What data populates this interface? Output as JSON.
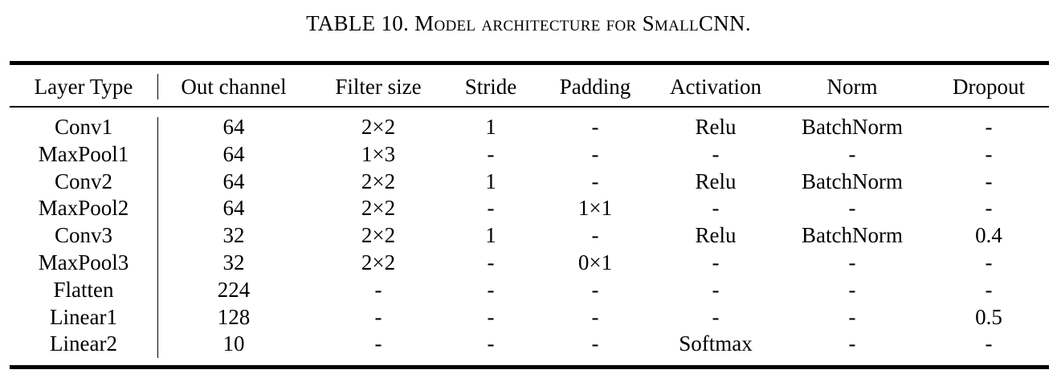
{
  "caption": {
    "prefix": "TABLE 10. M",
    "word1": "odel architecture for",
    "space": " S",
    "word2": "mall",
    "suffix": "CNN."
  },
  "table": {
    "headers": [
      "Layer Type",
      "Out channel",
      "Filter size",
      "Stride",
      "Padding",
      "Activation",
      "Norm",
      "Dropout"
    ],
    "rows": [
      [
        "Conv1",
        "64",
        "2×2",
        "1",
        "-",
        "Relu",
        "BatchNorm",
        "-"
      ],
      [
        "MaxPool1",
        "64",
        "1×3",
        "-",
        "-",
        "-",
        "-",
        "-"
      ],
      [
        "Conv2",
        "64",
        "2×2",
        "1",
        "-",
        "Relu",
        "BatchNorm",
        "-"
      ],
      [
        "MaxPool2",
        "64",
        "2×2",
        "-",
        "1×1",
        "-",
        "-",
        "-"
      ],
      [
        "Conv3",
        "32",
        "2×2",
        "1",
        "-",
        "Relu",
        "BatchNorm",
        "0.4"
      ],
      [
        "MaxPool3",
        "32",
        "2×2",
        "-",
        "0×1",
        "-",
        "-",
        "-"
      ],
      [
        "Flatten",
        "224",
        "-",
        "-",
        "-",
        "-",
        "-",
        "-"
      ],
      [
        "Linear1",
        "128",
        "-",
        "-",
        "-",
        "-",
        "-",
        "0.5"
      ],
      [
        "Linear2",
        "10",
        "-",
        "-",
        "-",
        "Softmax",
        "-",
        "-"
      ]
    ]
  }
}
